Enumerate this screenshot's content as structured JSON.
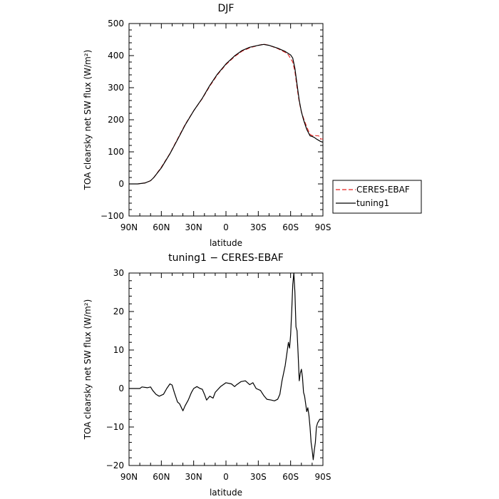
{
  "chart_data": [
    {
      "type": "line",
      "title": "DJF",
      "xlabel": "latitude",
      "ylabel": "TOA clearsky net SW flux (W/m²)",
      "xlim": [
        -90,
        90
      ],
      "ylim": [
        -100,
        500
      ],
      "xticks": [
        -90,
        -60,
        -30,
        0,
        30,
        60,
        90
      ],
      "xtick_labels": [
        "90N",
        "60N",
        "30N",
        "0",
        "30S",
        "60S",
        "90S"
      ],
      "yticks": [
        -100,
        0,
        100,
        200,
        300,
        400,
        500
      ],
      "ytick_labels": [
        "−100",
        "0",
        "100",
        "200",
        "300",
        "400",
        "500"
      ],
      "legend": {
        "placement": "right"
      },
      "series": [
        {
          "name": "CERES-EBAF",
          "color": "#e8201e",
          "dash": true,
          "points": [
            [
              -90,
              0
            ],
            [
              -82,
              0
            ],
            [
              -75,
              3
            ],
            [
              -70,
              10
            ],
            [
              -67,
              20
            ],
            [
              -60,
              52
            ],
            [
              -52,
              95
            ],
            [
              -45,
              140
            ],
            [
              -38,
              185
            ],
            [
              -30,
              228
            ],
            [
              -22,
              266
            ],
            [
              -15,
              305
            ],
            [
              -8,
              340
            ],
            [
              0,
              372
            ],
            [
              8,
              397
            ],
            [
              15,
              414
            ],
            [
              22,
              424
            ],
            [
              30,
              432
            ],
            [
              35,
              436
            ],
            [
              40,
              432
            ],
            [
              48,
              422
            ],
            [
              55,
              410
            ],
            [
              58,
              402
            ],
            [
              62,
              380
            ],
            [
              64,
              350
            ],
            [
              66,
              300
            ],
            [
              68,
              255
            ],
            [
              70,
              225
            ],
            [
              73,
              195
            ],
            [
              76,
              170
            ],
            [
              78,
              155
            ],
            [
              80,
              150
            ],
            [
              82,
              152
            ],
            [
              84,
              150
            ],
            [
              86,
              150
            ],
            [
              88,
              140
            ],
            [
              90,
              140
            ]
          ]
        },
        {
          "name": "tuning1",
          "color": "#000000",
          "dash": false,
          "points": [
            [
              -90,
              0
            ],
            [
              -82,
              0
            ],
            [
              -75,
              3
            ],
            [
              -70,
              10
            ],
            [
              -67,
              20
            ],
            [
              -60,
              50
            ],
            [
              -52,
              94
            ],
            [
              -45,
              138
            ],
            [
              -38,
              183
            ],
            [
              -30,
              228
            ],
            [
              -22,
              267
            ],
            [
              -15,
              307
            ],
            [
              -8,
              342
            ],
            [
              0,
              374
            ],
            [
              8,
              399
            ],
            [
              15,
              416
            ],
            [
              22,
              426
            ],
            [
              30,
              432
            ],
            [
              35,
              435
            ],
            [
              40,
              432
            ],
            [
              48,
              423
            ],
            [
              55,
              413
            ],
            [
              60,
              402
            ],
            [
              62,
              392
            ],
            [
              64,
              360
            ],
            [
              66,
              310
            ],
            [
              68,
              260
            ],
            [
              70,
              225
            ],
            [
              72,
              200
            ],
            [
              75,
              170
            ],
            [
              78,
              150
            ],
            [
              80,
              148
            ],
            [
              82,
              145
            ],
            [
              84,
              140
            ],
            [
              86,
              136
            ],
            [
              88,
              132
            ],
            [
              90,
              130
            ]
          ]
        }
      ]
    },
    {
      "type": "line",
      "title": "tuning1 − CERES-EBAF",
      "xlabel": "latitude",
      "ylabel": "TOA clearsky net SW flux (W/m²)",
      "xlim": [
        -90,
        90
      ],
      "ylim": [
        -20,
        30
      ],
      "xticks": [
        -90,
        -60,
        -30,
        0,
        30,
        60,
        90
      ],
      "xtick_labels": [
        "90N",
        "60N",
        "30N",
        "0",
        "30S",
        "60S",
        "90S"
      ],
      "yticks": [
        -20,
        -10,
        0,
        10,
        20,
        30
      ],
      "ytick_labels": [
        "−20",
        "−10",
        "0",
        "10",
        "20",
        "30"
      ],
      "series": [
        {
          "name": "tuning1 − CERES-EBAF",
          "color": "#000000",
          "dash": false,
          "points": [
            [
              -90,
              0
            ],
            [
              -80,
              0
            ],
            [
              -78,
              0.4
            ],
            [
              -73,
              0.2
            ],
            [
              -70,
              0.4
            ],
            [
              -68,
              -0.5
            ],
            [
              -65,
              -1.5
            ],
            [
              -62,
              -2.0
            ],
            [
              -58,
              -1.5
            ],
            [
              -55,
              0
            ],
            [
              -52,
              1.2
            ],
            [
              -50,
              0.9
            ],
            [
              -48,
              -1.0
            ],
            [
              -45,
              -3.5
            ],
            [
              -43,
              -4.0
            ],
            [
              -40,
              -5.8
            ],
            [
              -38,
              -4.5
            ],
            [
              -35,
              -3.0
            ],
            [
              -32,
              -1.0
            ],
            [
              -30,
              0
            ],
            [
              -27,
              0.5
            ],
            [
              -24,
              0
            ],
            [
              -22,
              -0.2
            ],
            [
              -20,
              -1.5
            ],
            [
              -18,
              -3.0
            ],
            [
              -15,
              -2.0
            ],
            [
              -12,
              -2.5
            ],
            [
              -10,
              -1.0
            ],
            [
              -5,
              0.5
            ],
            [
              0,
              1.5
            ],
            [
              5,
              1.2
            ],
            [
              8,
              0.5
            ],
            [
              10,
              1.0
            ],
            [
              14,
              1.8
            ],
            [
              18,
              2.0
            ],
            [
              22,
              1.0
            ],
            [
              25,
              1.5
            ],
            [
              28,
              0
            ],
            [
              32,
              -0.5
            ],
            [
              35,
              -1.8
            ],
            [
              38,
              -2.8
            ],
            [
              42,
              -3.0
            ],
            [
              45,
              -3.2
            ],
            [
              48,
              -2.8
            ],
            [
              50,
              -1.5
            ],
            [
              52,
              2.0
            ],
            [
              55,
              6.0
            ],
            [
              57,
              10.0
            ],
            [
              58,
              12.0
            ],
            [
              59,
              10.5
            ],
            [
              60,
              14.0
            ],
            [
              61,
              20.0
            ],
            [
              62,
              27.0
            ],
            [
              63,
              30.0
            ],
            [
              64,
              25.0
            ],
            [
              65,
              16.0
            ],
            [
              66,
              15.0
            ],
            [
              67,
              9.0
            ],
            [
              68,
              2.0
            ],
            [
              69,
              4.0
            ],
            [
              70,
              5.0
            ],
            [
              71,
              3.0
            ],
            [
              72,
              -1.0
            ],
            [
              73,
              -2.0
            ],
            [
              74,
              -4.0
            ],
            [
              75,
              -6.0
            ],
            [
              76,
              -5.0
            ],
            [
              77,
              -7.0
            ],
            [
              78,
              -10.0
            ],
            [
              79,
              -14.0
            ],
            [
              80,
              -16.0
            ],
            [
              81,
              -18.5
            ],
            [
              82,
              -16.0
            ],
            [
              83,
              -14.0
            ],
            [
              84,
              -10.0
            ],
            [
              85,
              -9.0
            ],
            [
              87,
              -8.0
            ],
            [
              90,
              -8.0
            ]
          ]
        }
      ]
    }
  ]
}
